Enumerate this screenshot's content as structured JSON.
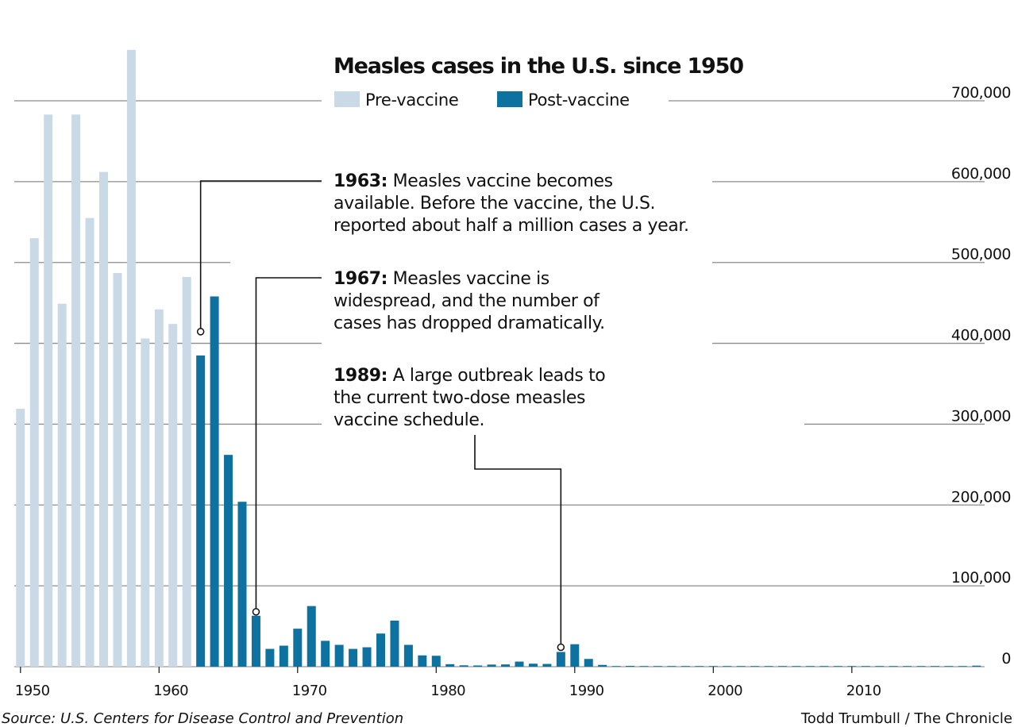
{
  "chart_data": {
    "type": "bar",
    "title": "Measles cases in the U.S. since 1950",
    "legend": [
      {
        "name": "Pre-vaccine",
        "color": "#c9d9e6"
      },
      {
        "name": "Post-vaccine",
        "color": "#0d72a0"
      }
    ],
    "legend_placement": "top-center",
    "ylim": [
      0,
      700000
    ],
    "yticks": [
      0,
      100000,
      200000,
      300000,
      400000,
      500000,
      600000,
      700000
    ],
    "ytick_labels": [
      "0",
      "100,000",
      "200,000",
      "300,000",
      "400,000",
      "500,000",
      "600,000",
      "700,000"
    ],
    "y_axis_side": "right",
    "xlim": [
      1950,
      2019
    ],
    "xticks": [
      1950,
      1960,
      1970,
      1980,
      1990,
      2000,
      2010
    ],
    "xtick_labels": [
      "1950",
      "1960",
      "1970",
      "1980",
      "1990",
      "2000",
      "2010"
    ],
    "grid": true,
    "vaccine_year": 1963,
    "x": [
      1950,
      1951,
      1952,
      1953,
      1954,
      1955,
      1956,
      1957,
      1958,
      1959,
      1960,
      1961,
      1962,
      1963,
      1964,
      1965,
      1966,
      1967,
      1968,
      1969,
      1970,
      1971,
      1972,
      1973,
      1974,
      1975,
      1976,
      1977,
      1978,
      1979,
      1980,
      1981,
      1982,
      1983,
      1984,
      1985,
      1986,
      1987,
      1988,
      1989,
      1990,
      1991,
      1992,
      1993,
      1994,
      1995,
      1996,
      1997,
      1998,
      1999,
      2000,
      2001,
      2002,
      2003,
      2004,
      2005,
      2006,
      2007,
      2008,
      2009,
      2010,
      2011,
      2012,
      2013,
      2014,
      2015,
      2016,
      2017,
      2018,
      2019
    ],
    "values": [
      319000,
      530000,
      683000,
      449000,
      683000,
      555000,
      612000,
      487000,
      763000,
      406000,
      442000,
      424000,
      482000,
      385000,
      458000,
      262000,
      204000,
      63000,
      22000,
      26000,
      47000,
      75000,
      32000,
      27000,
      22000,
      24000,
      41000,
      57000,
      27000,
      14000,
      13500,
      3100,
      1700,
      1500,
      2600,
      2800,
      6300,
      3700,
      3400,
      18200,
      27800,
      9600,
      2200,
      300,
      1000,
      300,
      500,
      140,
      100,
      100,
      90,
      120,
      40,
      60,
      40,
      70,
      60,
      40,
      140,
      70,
      60,
      220,
      60,
      190,
      670,
      190,
      90,
      120,
      380,
      1280
    ],
    "annotations": [
      {
        "year": 1963,
        "label": "1963:",
        "text": [
          "Measles vaccine becomes",
          "available. Before the vaccine, the U.S.",
          "reported about half a million cases a year."
        ]
      },
      {
        "year": 1967,
        "label": "1967:",
        "text": [
          "Measles vaccine is",
          "widespread, and the number of",
          "cases has dropped dramatically."
        ]
      },
      {
        "year": 1989,
        "label": "1989:",
        "text": [
          "A large outbreak leads to",
          "the current two-dose measles",
          "vaccine schedule."
        ]
      }
    ],
    "source": "Source: U.S. Centers for Disease Control and Prevention",
    "credit": "Todd Trumbull / The Chronicle"
  }
}
